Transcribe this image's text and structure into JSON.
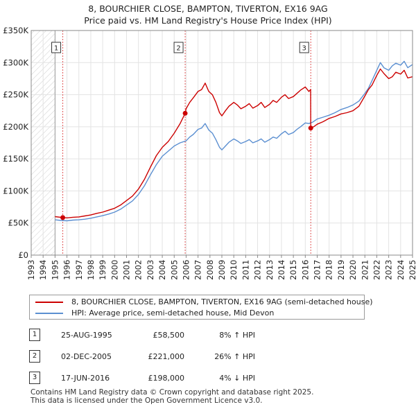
{
  "chart_data": {
    "type": "line",
    "title": "8, BOURCHIER CLOSE, BAMPTON, TIVERTON, EX16 9AG",
    "subtitle": "Price paid vs. HM Land Registry's House Price Index (HPI)",
    "xlabel": "",
    "ylabel": "",
    "xlim": [
      1993,
      2025
    ],
    "ylim": [
      0,
      350000
    ],
    "x_ticks": [
      "1993",
      "1994",
      "1995",
      "1996",
      "1997",
      "1998",
      "1999",
      "2000",
      "2001",
      "2002",
      "2003",
      "2004",
      "2005",
      "2006",
      "2007",
      "2008",
      "2009",
      "2010",
      "2011",
      "2012",
      "2013",
      "2014",
      "2015",
      "2016",
      "2017",
      "2018",
      "2019",
      "2020",
      "2021",
      "2022",
      "2023",
      "2024",
      "2025"
    ],
    "y_ticks": [
      {
        "value": 0,
        "label": "£0"
      },
      {
        "value": 50000,
        "label": "£50K"
      },
      {
        "value": 100000,
        "label": "£100K"
      },
      {
        "value": 150000,
        "label": "£150K"
      },
      {
        "value": 200000,
        "label": "£200K"
      },
      {
        "value": 250000,
        "label": "£250K"
      },
      {
        "value": 300000,
        "label": "£300K"
      },
      {
        "value": 350000,
        "label": "£350K"
      }
    ],
    "grid": true,
    "hatched_before": 1995.0,
    "series": [
      {
        "name": "8, BOURCHIER CLOSE, BAMPTON, TIVERTON, EX16 9AG (semi-detached house)",
        "color": "#cc0000",
        "x": [
          1995.0,
          1995.65,
          1996.0,
          1996.5,
          1997.0,
          1997.5,
          1998.0,
          1998.5,
          1999.0,
          1999.5,
          2000.0,
          2000.5,
          2001.0,
          2001.5,
          2002.0,
          2002.5,
          2003.0,
          2003.5,
          2004.0,
          2004.5,
          2005.0,
          2005.5,
          2005.92,
          2006.0,
          2006.3,
          2006.6,
          2007.0,
          2007.3,
          2007.6,
          2007.9,
          2008.2,
          2008.5,
          2008.8,
          2009.0,
          2009.3,
          2009.6,
          2010.0,
          2010.3,
          2010.6,
          2011.0,
          2011.3,
          2011.6,
          2012.0,
          2012.3,
          2012.6,
          2013.0,
          2013.3,
          2013.6,
          2014.0,
          2014.3,
          2014.6,
          2015.0,
          2015.3,
          2015.6,
          2016.0,
          2016.3,
          2016.45,
          2016.46,
          2016.7,
          2017.0,
          2017.5,
          2018.0,
          2018.5,
          2019.0,
          2019.5,
          2020.0,
          2020.5,
          2021.0,
          2021.3,
          2021.6,
          2022.0,
          2022.3,
          2022.6,
          2023.0,
          2023.3,
          2023.6,
          2024.0,
          2024.3,
          2024.6,
          2025.0
        ],
        "y": [
          60000,
          58500,
          58000,
          59000,
          59500,
          61000,
          62500,
          65000,
          67000,
          70000,
          73000,
          78000,
          85000,
          92000,
          103000,
          118000,
          137000,
          155000,
          168000,
          177000,
          190000,
          205000,
          221000,
          228000,
          238000,
          245000,
          255000,
          258000,
          268000,
          255000,
          250000,
          238000,
          222000,
          217000,
          225000,
          232000,
          238000,
          234000,
          228000,
          232000,
          236000,
          229000,
          233000,
          238000,
          230000,
          235000,
          241000,
          238000,
          246000,
          250000,
          244000,
          247000,
          252000,
          257000,
          262000,
          255000,
          258000,
          198000,
          200000,
          204000,
          208000,
          213000,
          216000,
          220000,
          222000,
          225000,
          232000,
          248000,
          258000,
          265000,
          280000,
          290000,
          283000,
          275000,
          278000,
          285000,
          282000,
          288000,
          276000,
          278000
        ]
      },
      {
        "name": "HPI: Average price, semi-detached house, Mid Devon",
        "color": "#5b8fd1",
        "x": [
          1995.0,
          1995.5,
          1996.0,
          1996.5,
          1997.0,
          1997.5,
          1998.0,
          1998.5,
          1999.0,
          1999.5,
          2000.0,
          2000.5,
          2001.0,
          2001.5,
          2002.0,
          2002.5,
          2003.0,
          2003.5,
          2004.0,
          2004.5,
          2005.0,
          2005.5,
          2006.0,
          2006.3,
          2006.6,
          2007.0,
          2007.3,
          2007.6,
          2007.9,
          2008.2,
          2008.5,
          2008.8,
          2009.0,
          2009.3,
          2009.6,
          2010.0,
          2010.3,
          2010.6,
          2011.0,
          2011.3,
          2011.6,
          2012.0,
          2012.3,
          2012.6,
          2013.0,
          2013.3,
          2013.6,
          2014.0,
          2014.3,
          2014.6,
          2015.0,
          2015.3,
          2015.6,
          2016.0,
          2016.3,
          2016.6,
          2017.0,
          2017.5,
          2018.0,
          2018.5,
          2019.0,
          2019.5,
          2020.0,
          2020.5,
          2021.0,
          2021.3,
          2021.6,
          2022.0,
          2022.3,
          2022.6,
          2023.0,
          2023.3,
          2023.6,
          2024.0,
          2024.3,
          2024.6,
          2025.0
        ],
        "y": [
          55000,
          54000,
          53500,
          54500,
          55000,
          56000,
          57500,
          59500,
          61500,
          64000,
          67000,
          71500,
          78000,
          84500,
          94500,
          108000,
          125000,
          141000,
          154000,
          162000,
          170000,
          175000,
          178000,
          184000,
          188000,
          196000,
          198000,
          205000,
          195000,
          190000,
          180000,
          168000,
          164000,
          170000,
          176000,
          181000,
          178000,
          174000,
          177000,
          180000,
          175000,
          178000,
          181000,
          176000,
          180000,
          184000,
          182000,
          189000,
          193000,
          188000,
          191000,
          196000,
          200000,
          206000,
          205000,
          207000,
          212000,
          215000,
          218000,
          222000,
          227000,
          230000,
          234000,
          240000,
          252000,
          260000,
          272000,
          288000,
          300000,
          292000,
          288000,
          295000,
          299000,
          296000,
          302000,
          292000,
          297000
        ]
      }
    ],
    "sales": [
      {
        "id": "1",
        "x": 1995.65,
        "y": 58500,
        "date": "25-AUG-1995",
        "price": "£58,500",
        "hpi": "8% ↑ HPI"
      },
      {
        "id": "2",
        "x": 2005.92,
        "y": 221000,
        "date": "02-DEC-2005",
        "price": "£221,000",
        "hpi": "26% ↑ HPI"
      },
      {
        "id": "3",
        "x": 2016.46,
        "y": 198000,
        "date": "17-JUN-2016",
        "price": "£198,000",
        "hpi": "4% ↓ HPI"
      }
    ]
  },
  "legend": {
    "property_label": "8, BOURCHIER CLOSE, BAMPTON, TIVERTON, EX16 9AG (semi-detached house)",
    "hpi_label": "HPI: Average price, semi-detached house, Mid Devon"
  },
  "colors": {
    "property": "#cc0000",
    "hpi": "#5b8fd1",
    "grid": "#e3e3e3",
    "marker_line": "#e05555"
  },
  "footer": {
    "line1": "Contains HM Land Registry data © Crown copyright and database right 2025.",
    "line2": "This data is licensed under the Open Government Licence v3.0."
  }
}
